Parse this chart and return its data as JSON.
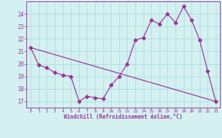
{
  "line1_x": [
    0,
    1,
    2,
    3,
    4,
    5,
    6,
    7,
    8,
    9,
    10,
    11,
    12,
    13,
    14,
    15,
    16,
    17,
    18,
    19,
    20,
    21,
    22,
    23
  ],
  "line1_y": [
    21.3,
    19.9,
    19.7,
    19.3,
    19.1,
    19.0,
    17.0,
    17.4,
    17.3,
    17.2,
    18.3,
    19.0,
    20.0,
    21.9,
    22.1,
    23.5,
    23.2,
    24.0,
    23.3,
    24.6,
    23.5,
    21.9,
    19.4,
    17.0
  ],
  "line2_x": [
    0,
    23
  ],
  "line2_y": [
    21.3,
    17.0
  ],
  "color": "#993399",
  "bg_color": "#d4f0f0",
  "grid_color": "#aadddd",
  "xlabel": "Windchill (Refroidissement éolien,°C)",
  "xlim": [
    -0.5,
    23.5
  ],
  "ylim": [
    16.5,
    25.0
  ],
  "yticks": [
    17,
    18,
    19,
    20,
    21,
    22,
    23,
    24
  ],
  "xticks": [
    0,
    1,
    2,
    3,
    4,
    5,
    6,
    7,
    8,
    9,
    10,
    11,
    12,
    13,
    14,
    15,
    16,
    17,
    18,
    19,
    20,
    21,
    22,
    23
  ],
  "marker": "D",
  "markersize": 2.5,
  "linewidth": 0.9
}
